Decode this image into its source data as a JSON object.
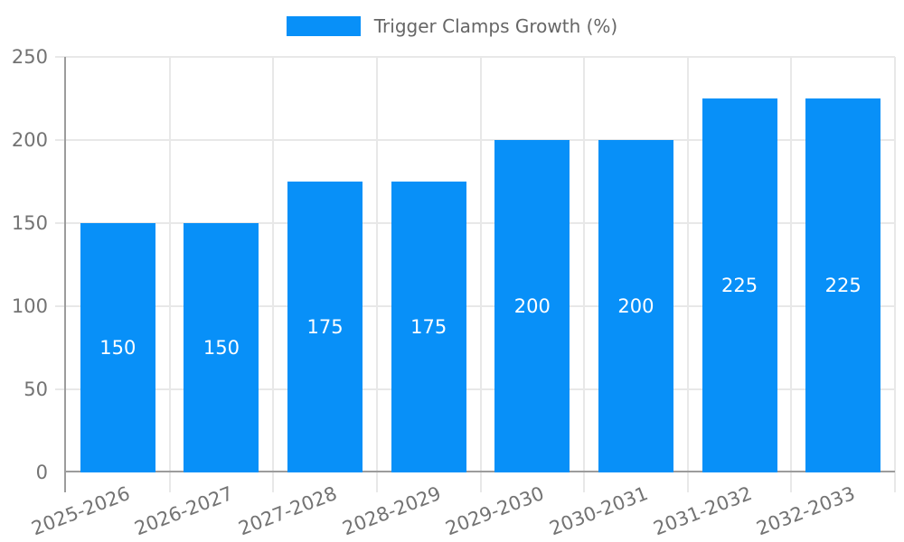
{
  "chart_data": {
    "type": "bar",
    "legend_label": "Trigger Clamps Growth (%)",
    "categories": [
      "2025-2026",
      "2026-2027",
      "2027-2028",
      "2028-2029",
      "2029-2030",
      "2030-2031",
      "2031-2032",
      "2032-2033"
    ],
    "values": [
      150,
      150,
      175,
      175,
      200,
      200,
      225,
      225
    ],
    "value_labels": [
      "150",
      "150",
      "175",
      "175",
      "200",
      "200",
      "225",
      "225"
    ],
    "yticks": [
      0,
      50,
      100,
      150,
      200,
      250
    ],
    "ytick_labels": [
      "0",
      "50",
      "100",
      "150",
      "200",
      "250"
    ],
    "ylim": [
      0,
      250
    ],
    "xlabel": "",
    "ylabel": "",
    "grid": true,
    "legend_position": "top-center",
    "x_label_rotation_deg": -21,
    "colors": {
      "bar": "#0890f8",
      "grid": "#e8e8e8",
      "axis": "#9c9c9c",
      "tick_label": "#737373",
      "legend_text": "#666666",
      "value_label": "#ffffff",
      "background": "#ffffff"
    }
  }
}
